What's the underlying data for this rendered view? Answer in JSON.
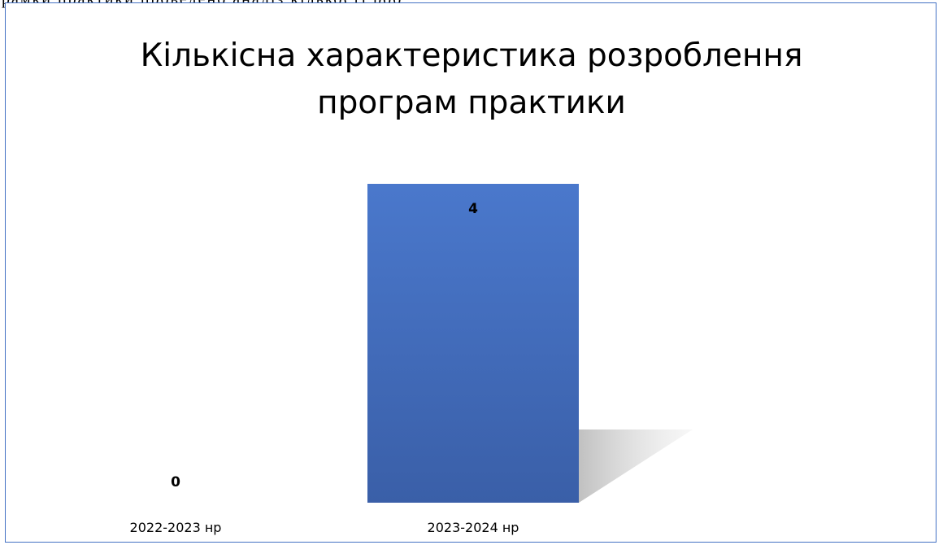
{
  "chart_data": {
    "type": "bar",
    "title": "Кількісна характеристика розроблення програм практики",
    "categories": [
      "2022-2023 нр",
      "2023-2024 нр"
    ],
    "values": [
      0,
      4
    ],
    "ylim": [
      0,
      4
    ],
    "xlabel": "",
    "ylabel": "",
    "grid": false,
    "legend": "none",
    "bar_color": "#4472c4",
    "bar_color_dark": "#3a5fa8",
    "frame_color": "#4472c4"
  }
}
